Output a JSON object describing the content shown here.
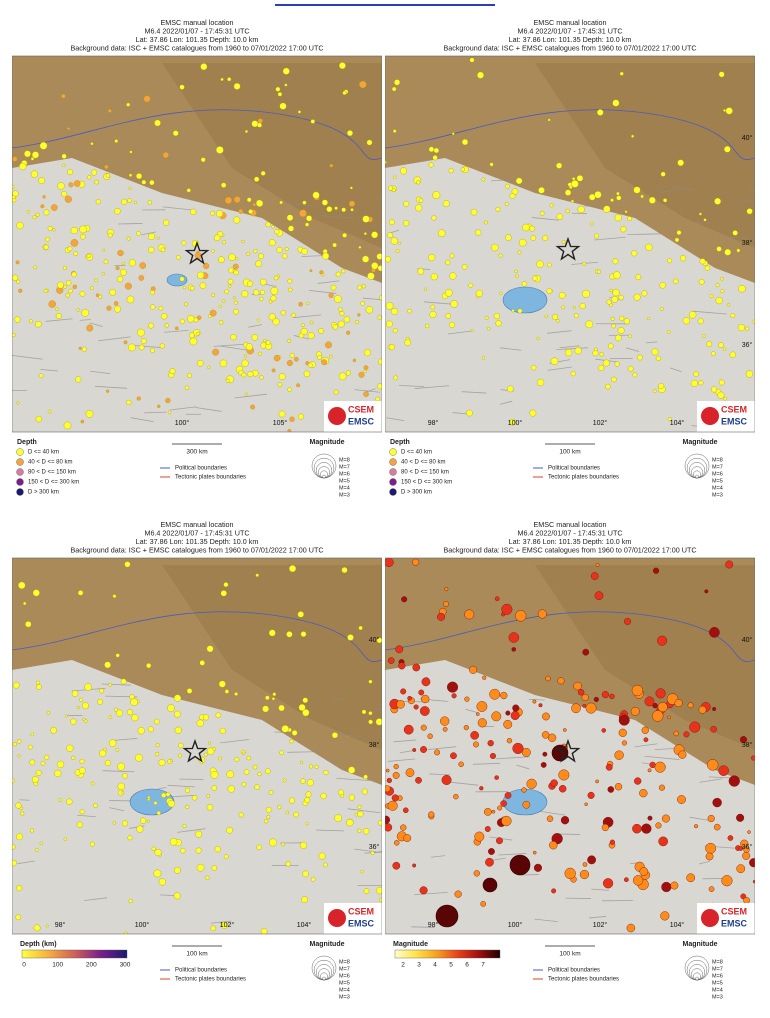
{
  "panels": [
    {
      "title": "EMSC manual location",
      "event": "M6.4  2022/01/07 - 17:45:31 UTC",
      "location": "Lat: 37.86    Lon: 101.35    Depth: 10.0 km",
      "background": "Background data: ISC + EMSC catalogues from 1960 to 07/01/2022 17:00 UTC",
      "lat_labels": [],
      "lon_labels": [
        "100°",
        "105°"
      ],
      "logo": [
        "CSEM",
        "EMSC"
      ],
      "scale": "300 km",
      "legend_title": "Depth",
      "legend_items": [
        "D <= 40 km",
        "40 < D <= 80 km",
        "80 < D <= 150 km",
        "150 < D <= 300 km",
        "D > 300 km"
      ],
      "boundaries": [
        "Political boundaries",
        "Tectonic plates boundaries"
      ],
      "magnitude_title": "Magnitude",
      "magnitudes": [
        "M=8",
        "M=7",
        "M=6",
        "M=5",
        "M=4",
        "M=3"
      ]
    },
    {
      "title": "EMSC manual location",
      "event": "M6.4  2022/01/07 - 17:45:31 UTC",
      "location": "Lat: 37.86    Lon: 101.35    Depth: 10.0 km",
      "background": "Background data: ISC + EMSC catalogues from 1960 to 07/01/2022 17:00 UTC",
      "lat_labels": [
        "40°",
        "38°",
        "36°"
      ],
      "lon_labels": [
        "98°",
        "100°",
        "102°",
        "104°"
      ],
      "logo": [
        "CSEM",
        "EMSC"
      ],
      "scale": "100 km",
      "legend_title": "Depth",
      "legend_items": [
        "D <= 40 km",
        "40 < D <= 80 km",
        "80 < D <= 150 km",
        "150 < D <= 300 km",
        "D > 300 km"
      ],
      "boundaries": [
        "Political boundaries",
        "Tectonic plates boundaries"
      ],
      "magnitude_title": "Magnitude",
      "magnitudes": [
        "M=8",
        "M=7",
        "M=6",
        "M=5",
        "M=4",
        "M=3"
      ]
    },
    {
      "title": "EMSC manual location",
      "event": "M6.4  2022/01/07 - 17:45:31 UTC",
      "location": "Lat: 37.86    Lon: 101.35    Depth: 10.0 km",
      "background": "Background data: ISC + EMSC catalogues from 1960 to 07/01/2022 17:00 UTC",
      "lat_labels": [
        "40°",
        "38°",
        "36°"
      ],
      "lon_labels": [
        "98°",
        "100°",
        "102°",
        "104°"
      ],
      "logo": [
        "CSEM",
        "EMSC"
      ],
      "scale": "100 km",
      "colorbar_title": "Depth (km)",
      "colorbar_ticks": [
        "0",
        "100",
        "200",
        "300"
      ],
      "boundaries": [
        "Political boundaries",
        "Tectonic plates boundaries"
      ],
      "magnitude_title": "Magnitude",
      "magnitudes": [
        "M=8",
        "M=7",
        "M=6",
        "M=5",
        "M=4",
        "M=3"
      ]
    },
    {
      "title": "EMSC manual location",
      "event": "M6.4  2022/01/07 - 17:45:31 UTC",
      "location": "Lat: 37.86    Lon: 101.35    Depth: 10.0 km",
      "background": "Background data: ISC + EMSC catalogues from 1960 to 07/01/2022 17:00 UTC",
      "lat_labels": [
        "40°",
        "38°",
        "36°"
      ],
      "lon_labels": [
        "98°",
        "100°",
        "102°",
        "104°"
      ],
      "logo": [
        "CSEM",
        "EMSC"
      ],
      "scale": "100 km",
      "colorbar_title": "Magnitude",
      "colorbar_ticks": [
        "2",
        "3",
        "4",
        "5",
        "6",
        "7"
      ],
      "boundaries": [
        "Political boundaries",
        "Tectonic plates boundaries"
      ],
      "magnitude_title": "Magnitude",
      "magnitudes": [
        "M=8",
        "M=7",
        "M=6",
        "M=5",
        "M=4",
        "M=3"
      ]
    }
  ]
}
